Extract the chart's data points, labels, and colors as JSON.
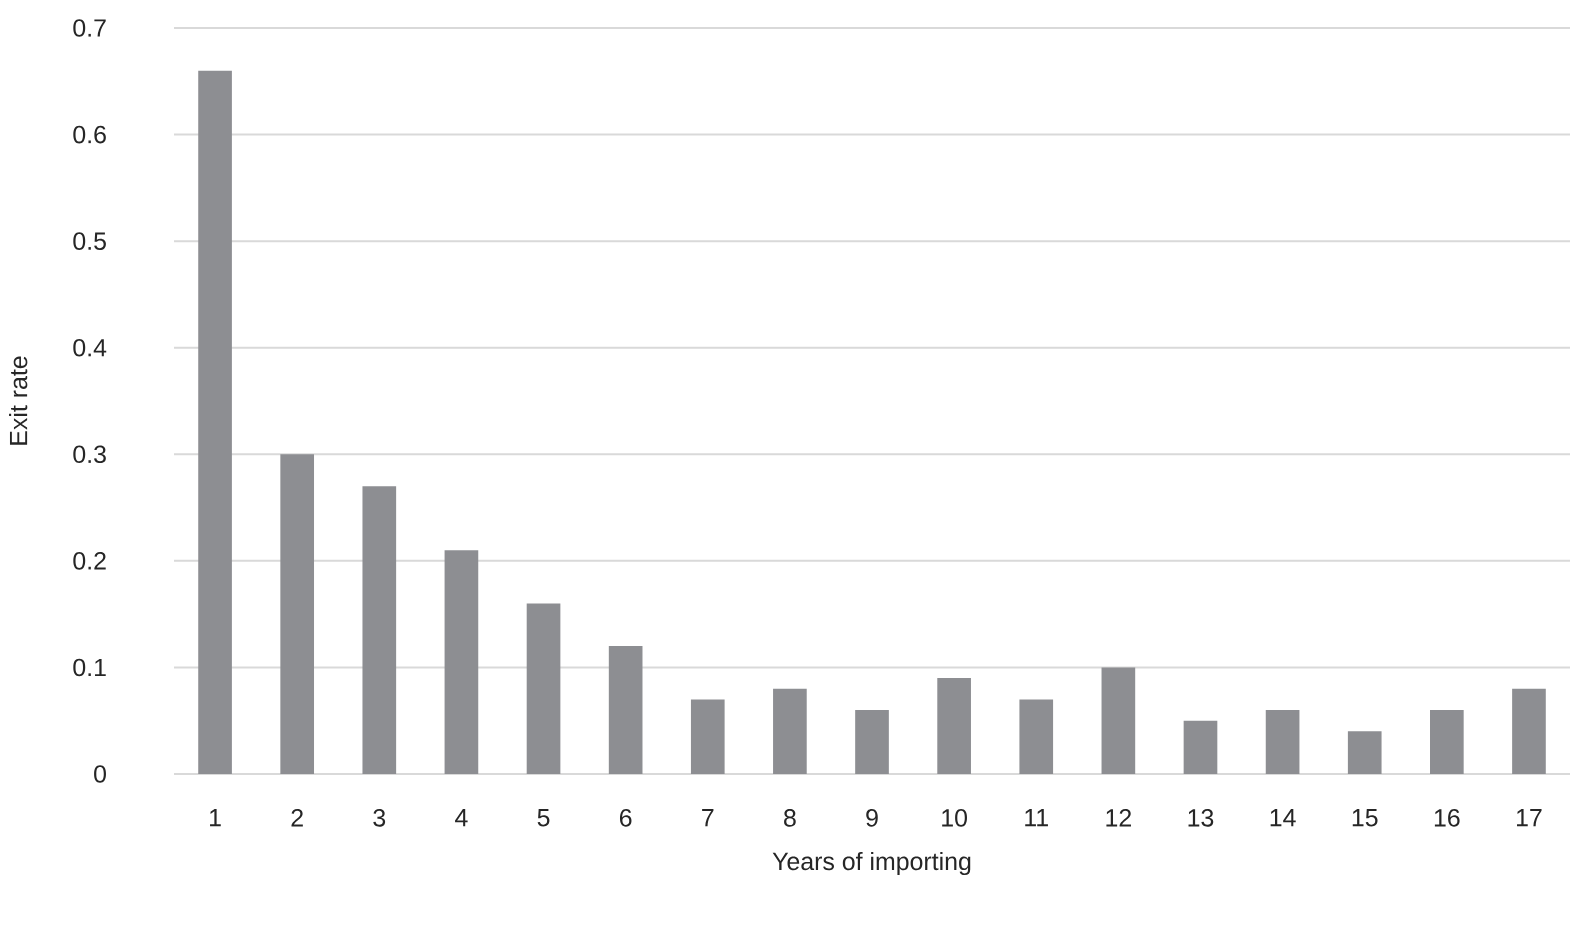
{
  "chart_data": {
    "type": "bar",
    "xlabel": "Years of importing",
    "ylabel": "Exit rate",
    "categories": [
      "1",
      "2",
      "3",
      "4",
      "5",
      "6",
      "7",
      "8",
      "9",
      "10",
      "11",
      "12",
      "13",
      "14",
      "15",
      "16",
      "17"
    ],
    "values": [
      0.66,
      0.3,
      0.27,
      0.21,
      0.16,
      0.12,
      0.07,
      0.08,
      0.06,
      0.09,
      0.07,
      0.1,
      0.05,
      0.06,
      0.04,
      0.06,
      0.08
    ],
    "color": "#8d8e92",
    "ylim": [
      0,
      0.7
    ],
    "yticks": [
      0,
      0.1,
      0.2,
      0.3,
      0.4,
      0.5,
      0.6,
      0.7
    ],
    "grid": "y"
  }
}
